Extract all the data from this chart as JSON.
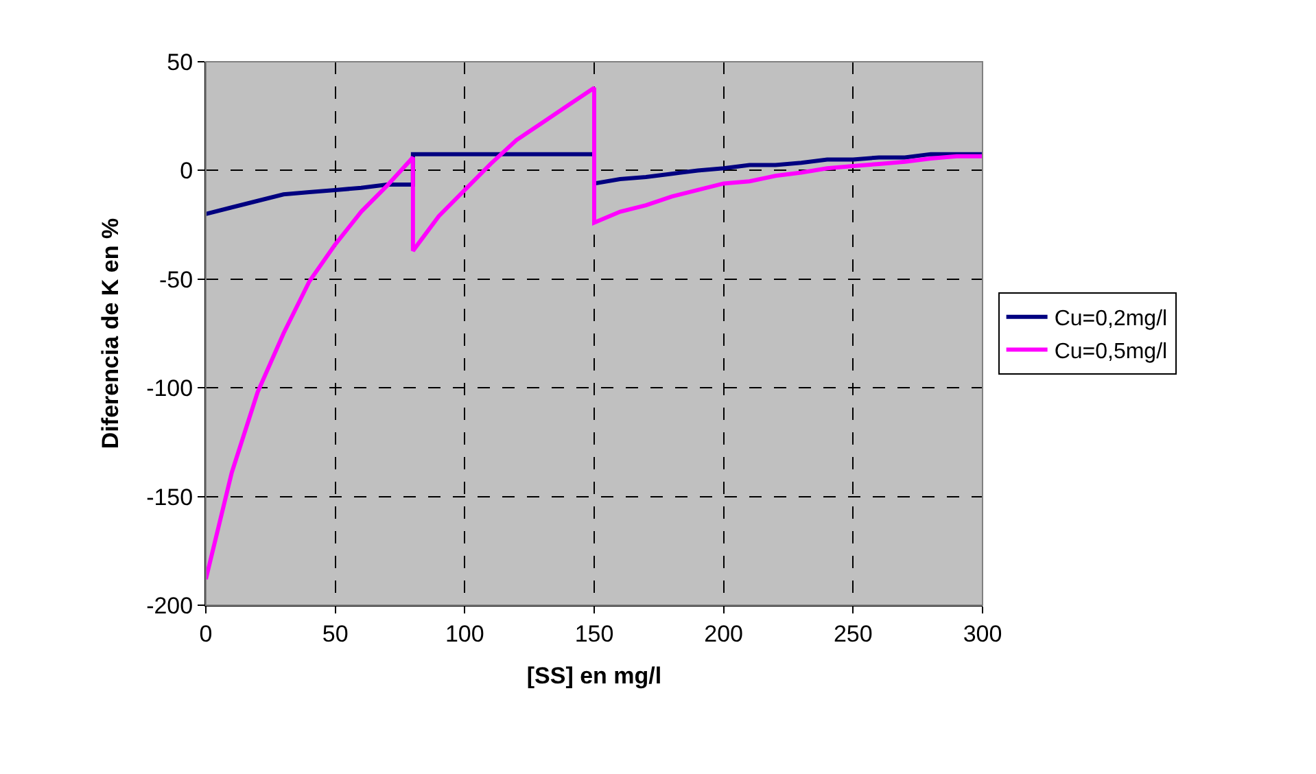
{
  "chart_data": {
    "type": "line",
    "xlabel": "[SS] en mg/l",
    "ylabel": "Diferencia de K en %",
    "xlim": [
      0,
      300
    ],
    "xticks": [
      0,
      50,
      100,
      150,
      200,
      250,
      300
    ],
    "ylim": [
      -200,
      50
    ],
    "yticks": [
      -200,
      -150,
      -100,
      -50,
      0,
      50
    ],
    "grid": true,
    "legend": "right",
    "marker": "none",
    "line_style": "solid",
    "series": [
      {
        "name": "Cu=0,2mg/l",
        "color": "#000080",
        "x": [
          0,
          10,
          20,
          30,
          40,
          50,
          60,
          70,
          80,
          80,
          90,
          100,
          110,
          120,
          130,
          140,
          150,
          150,
          160,
          170,
          180,
          190,
          200,
          210,
          220,
          230,
          240,
          250,
          260,
          270,
          280,
          290,
          300
        ],
        "values": [
          -20,
          -17,
          -14,
          -11,
          -10,
          -9,
          -8,
          -6.5,
          -6.5,
          7.5,
          7.5,
          7.5,
          7.5,
          7.5,
          7.5,
          7.5,
          7.5,
          -6,
          -4,
          -3,
          -1.5,
          0,
          1,
          2.5,
          2.5,
          3.5,
          5,
          5,
          6,
          6,
          7.5,
          7.5,
          7.5
        ]
      },
      {
        "name": "Cu=0,5mg/l",
        "color": "#ff00ff",
        "x": [
          0,
          10,
          20,
          30,
          40,
          50,
          60,
          70,
          80,
          80,
          90,
          100,
          110,
          120,
          130,
          140,
          150,
          150,
          160,
          170,
          180,
          190,
          200,
          210,
          220,
          230,
          240,
          250,
          260,
          270,
          280,
          290,
          300
        ],
        "values": [
          -188,
          -139,
          -102,
          -75,
          -51,
          -34,
          -19,
          -7,
          6,
          -37,
          -21,
          -9,
          3,
          14,
          22,
          30,
          38,
          -24,
          -19,
          -16,
          -12,
          -9,
          -6,
          -5,
          -2.5,
          -1,
          1,
          2,
          3,
          4,
          5.5,
          6.5,
          6.5
        ]
      }
    ]
  }
}
